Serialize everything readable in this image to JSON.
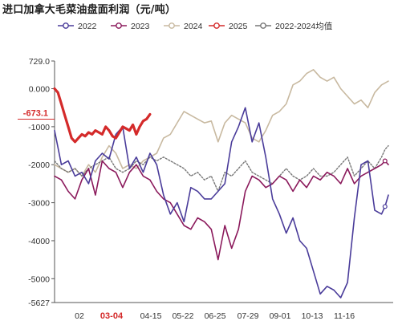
{
  "title": "进口加拿大毛菜油盘面利润（元/吨）",
  "colors": {
    "s2022": "#4a3c9a",
    "s2023": "#8b1a5c",
    "s2024": "#c8b9a0",
    "s2025": "#d42a2a",
    "savg": "#777777",
    "axis": "#555555",
    "hl": "#d42a2a"
  },
  "chart_data": {
    "type": "line",
    "title": "进口加拿大毛菜油盘面利润（元/吨）",
    "xlabel": "",
    "ylabel": "",
    "ylim": [
      -5627,
      729
    ],
    "y_ticks": [
      729,
      0,
      -1000,
      -2000,
      -3000,
      -4000,
      -5000,
      -5627
    ],
    "y_tick_labels": [
      "729.0",
      "0.000",
      "-1000",
      "-2000",
      "-3000",
      "-4000",
      "-5000",
      "-5627"
    ],
    "x_ticks": [
      "02",
      "03-04",
      "04-15",
      "05-22",
      "06-25",
      "07-29",
      "09-01",
      "10-13",
      "11-16"
    ],
    "x_tick_highlight": "03-04",
    "current_value_label": "-673.1",
    "legend": [
      "2022",
      "2023",
      "2024",
      "2025",
      "2022-2024均值"
    ],
    "series": [
      {
        "name": "2022",
        "color": "#4a3c9a",
        "x": [
          0,
          2,
          4,
          6,
          8,
          10,
          12,
          14,
          16,
          18,
          20,
          22,
          24,
          26,
          28,
          30,
          32,
          34,
          36,
          38,
          40,
          42,
          44,
          46,
          48,
          50,
          52,
          54,
          56,
          58,
          60,
          62,
          64,
          66,
          68,
          70,
          72,
          74,
          76,
          78,
          80,
          82,
          84,
          86,
          88,
          90,
          92,
          94,
          96,
          97,
          98
        ],
        "y": [
          -1100,
          -2000,
          -1900,
          -2300,
          -2200,
          -2500,
          -1900,
          -1700,
          -1850,
          -1200,
          -1000,
          -2100,
          -1800,
          -2200,
          -1700,
          -2000,
          -2800,
          -3300,
          -3000,
          -3500,
          -2600,
          -2700,
          -2900,
          -2900,
          -2700,
          -2500,
          -1400,
          -1000,
          -500,
          -1400,
          -900,
          -1800,
          -2900,
          -3300,
          -3800,
          -3400,
          -4000,
          -4200,
          -4800,
          -5400,
          -5200,
          -5300,
          -5500,
          -5100,
          -3400,
          -2000,
          -1900,
          -3200,
          -3300,
          -3100,
          -2800
        ]
      },
      {
        "name": "2023",
        "color": "#8b1a5c",
        "x": [
          0,
          2,
          4,
          6,
          8,
          10,
          12,
          14,
          16,
          18,
          20,
          22,
          24,
          26,
          28,
          30,
          32,
          34,
          36,
          38,
          40,
          42,
          44,
          46,
          48,
          50,
          52,
          54,
          56,
          58,
          60,
          62,
          64,
          66,
          68,
          70,
          72,
          74,
          76,
          78,
          80,
          82,
          84,
          86,
          88,
          90,
          92,
          94,
          96,
          97,
          98
        ],
        "y": [
          -2300,
          -2400,
          -2700,
          -2900,
          -2400,
          -2100,
          -2800,
          -1900,
          -2100,
          -2200,
          -2600,
          -2200,
          -2000,
          -2300,
          -2400,
          -2700,
          -2900,
          -3000,
          -3300,
          -3600,
          -3700,
          -3400,
          -3500,
          -3700,
          -4500,
          -3600,
          -4200,
          -3700,
          -2700,
          -2300,
          -2400,
          -2600,
          -2500,
          -2300,
          -2400,
          -2700,
          -2400,
          -2600,
          -2300,
          -2400,
          -2200,
          -2300,
          -2500,
          -2100,
          -2500,
          -2300,
          -2200,
          -2100,
          -2000,
          -1900,
          -2000
        ]
      },
      {
        "name": "2024",
        "color": "#c8b9a0",
        "x": [
          0,
          2,
          4,
          6,
          8,
          10,
          12,
          14,
          16,
          18,
          20,
          22,
          24,
          26,
          28,
          30,
          32,
          34,
          36,
          38,
          40,
          42,
          44,
          46,
          48,
          50,
          52,
          54,
          56,
          58,
          60,
          62,
          64,
          66,
          68,
          70,
          72,
          74,
          76,
          78,
          80,
          82,
          84,
          86,
          88,
          90,
          92,
          94,
          96,
          97,
          98
        ],
        "y": [
          -2000,
          -2100,
          -2200,
          -2100,
          -2300,
          -2000,
          -2200,
          -1800,
          -1500,
          -1700,
          -2100,
          -2000,
          -2100,
          -1900,
          -1800,
          -1700,
          -1300,
          -1200,
          -900,
          -600,
          -700,
          -800,
          -900,
          -850,
          -1400,
          -900,
          -700,
          -800,
          -900,
          -1300,
          -1400,
          -1100,
          -700,
          -600,
          -400,
          100,
          200,
          400,
          500,
          300,
          200,
          300,
          0,
          -200,
          -400,
          -300,
          -500,
          -100,
          100,
          150,
          200
        ]
      },
      {
        "name": "2025",
        "color": "#d42a2a",
        "x": [
          0,
          1,
          2,
          3,
          4,
          5,
          6,
          7,
          8,
          9,
          10,
          11,
          12,
          13,
          14,
          15,
          16,
          17,
          18,
          19,
          20,
          21,
          22,
          23,
          24,
          25,
          26,
          27,
          28
        ],
        "y": [
          0,
          -100,
          -400,
          -700,
          -1000,
          -1300,
          -1400,
          -1300,
          -1200,
          -1250,
          -1150,
          -1200,
          -1100,
          -1150,
          -1200,
          -1000,
          -1100,
          -1250,
          -1300,
          -1150,
          -1000,
          -1050,
          -1100,
          -950,
          -1200,
          -1000,
          -850,
          -800,
          -673.1
        ]
      },
      {
        "name": "2022-2024均值",
        "color": "#777777",
        "x": [
          0,
          2,
          4,
          6,
          8,
          10,
          12,
          14,
          16,
          18,
          20,
          22,
          24,
          26,
          28,
          30,
          32,
          34,
          36,
          38,
          40,
          42,
          44,
          46,
          48,
          50,
          52,
          54,
          56,
          58,
          60,
          62,
          64,
          66,
          68,
          70,
          72,
          74,
          76,
          78,
          80,
          82,
          84,
          86,
          88,
          90,
          92,
          94,
          96,
          97,
          98
        ],
        "y": [
          -1900,
          -2100,
          -2200,
          -2100,
          -2300,
          -2100,
          -2000,
          -1900,
          -1800,
          -2100,
          -2200,
          -2100,
          -1900,
          -2000,
          -1800,
          -1900,
          -1800,
          -1900,
          -2000,
          -2100,
          -2300,
          -2200,
          -2400,
          -2300,
          -2700,
          -2200,
          -2300,
          -2100,
          -1900,
          -2200,
          -2300,
          -2400,
          -2500,
          -2300,
          -2100,
          -2300,
          -2400,
          -2300,
          -2100,
          -2300,
          -2300,
          -2200,
          -2000,
          -1800,
          -2300,
          -2100,
          -1900,
          -2100,
          -1800,
          -1600,
          -1500
        ]
      }
    ]
  }
}
